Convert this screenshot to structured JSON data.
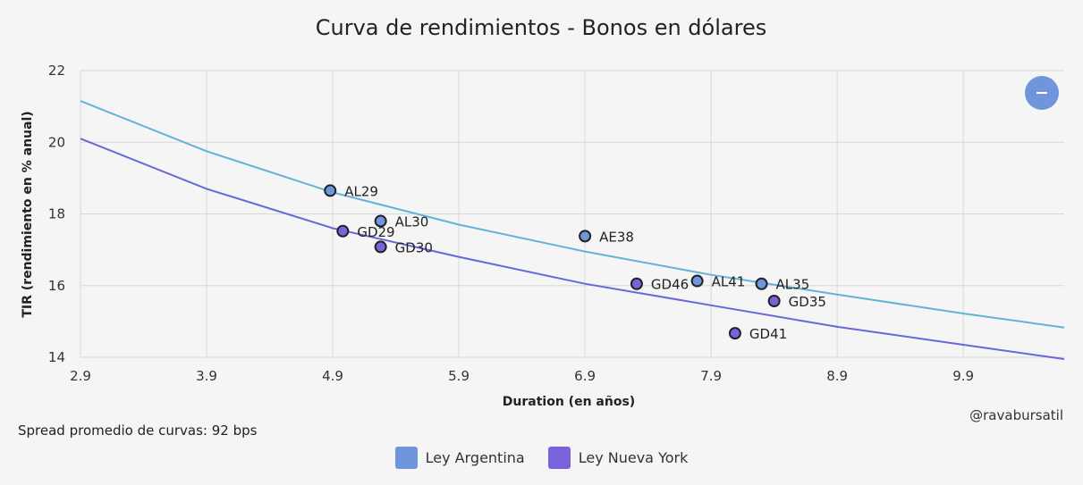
{
  "chart_data": {
    "type": "scatter",
    "title": "Curva de rendimientos - Bonos en dólares",
    "xlabel": "Duration (en años)",
    "ylabel": "TIR (rendimiento en % anual)",
    "xlim": [
      2.9,
      10.7
    ],
    "ylim": [
      14,
      22
    ],
    "xticks": [
      2.9,
      3.9,
      4.9,
      5.9,
      6.9,
      7.9,
      8.9,
      9.9
    ],
    "yticks": [
      14,
      16,
      18,
      20,
      22
    ],
    "grid": true,
    "legend_position": "bottom",
    "series": [
      {
        "name": "Ley Argentina",
        "color": "#6f96dc",
        "curve_color": "#63b3d7",
        "points": [
          {
            "label": "AL29",
            "x": 4.88,
            "y": 18.65
          },
          {
            "label": "AL30",
            "x": 5.28,
            "y": 17.8
          },
          {
            "label": "AE38",
            "x": 6.9,
            "y": 17.38
          },
          {
            "label": "AL41",
            "x": 7.79,
            "y": 16.13
          },
          {
            "label": "AL35",
            "x": 8.3,
            "y": 16.05
          }
        ],
        "curve": {
          "x": [
            2.9,
            3.9,
            4.9,
            5.9,
            6.9,
            7.9,
            8.9,
            9.9,
            10.7
          ],
          "y": [
            21.15,
            19.75,
            18.6,
            17.7,
            16.95,
            16.3,
            15.75,
            15.22,
            14.83
          ]
        }
      },
      {
        "name": "Ley Nueva York",
        "color": "#7b62dd",
        "curve_color": "#6569d9",
        "points": [
          {
            "label": "GD29",
            "x": 4.98,
            "y": 17.52
          },
          {
            "label": "GD30",
            "x": 5.28,
            "y": 17.08
          },
          {
            "label": "GD46",
            "x": 7.31,
            "y": 16.05
          },
          {
            "label": "GD35",
            "x": 8.4,
            "y": 15.57
          },
          {
            "label": "GD41",
            "x": 8.09,
            "y": 14.67
          }
        ],
        "curve": {
          "x": [
            2.9,
            3.9,
            4.9,
            5.9,
            6.9,
            7.9,
            8.9,
            9.9,
            10.7
          ],
          "y": [
            20.1,
            18.7,
            17.6,
            16.8,
            16.05,
            15.45,
            14.85,
            14.35,
            13.95
          ]
        }
      }
    ]
  },
  "annotations": {
    "spread": "Spread promedio de curvas: 92 bps",
    "credit": "@ravabursatil"
  }
}
